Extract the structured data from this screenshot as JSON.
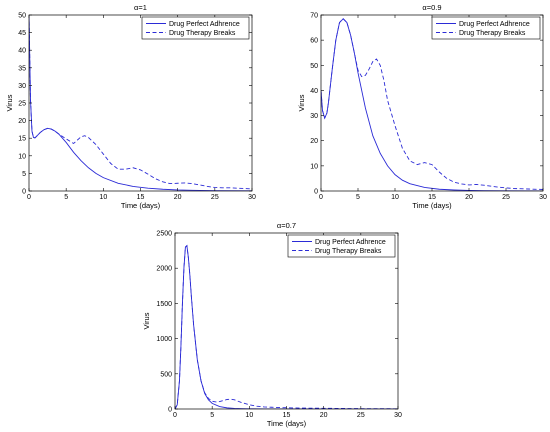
{
  "series_color": "#2b2bd6",
  "chart_data": [
    {
      "type": "line",
      "title": "α=1",
      "xlabel": "Time (days)",
      "ylabel": "Virus",
      "xlim": [
        0,
        30
      ],
      "ylim": [
        0,
        50
      ],
      "xticks": [
        0,
        5,
        10,
        15,
        20,
        25,
        30
      ],
      "yticks": [
        0,
        5,
        10,
        15,
        20,
        25,
        30,
        35,
        40,
        45,
        50
      ],
      "grid": false,
      "legend": "top-right",
      "series": [
        {
          "name": "Drug Perfect Adhrence",
          "style": "solid",
          "x": [
            0,
            0.1,
            0.2,
            0.4,
            0.6,
            0.8,
            1.0,
            1.5,
            2.0,
            2.5,
            3.0,
            3.5,
            4.0,
            5.0,
            6.0,
            7.0,
            8.0,
            9.0,
            10.0,
            12.0,
            14.0,
            16.0,
            18.0,
            20.0,
            22.0,
            25.0,
            30.0
          ],
          "y": [
            50,
            38,
            26,
            17,
            15.2,
            15.1,
            15.5,
            16.6,
            17.4,
            17.8,
            17.6,
            17.0,
            16.2,
            13.8,
            11.0,
            8.6,
            6.6,
            5.0,
            3.8,
            2.2,
            1.3,
            0.8,
            0.5,
            0.3,
            0.2,
            0.1,
            0.05
          ]
        },
        {
          "name": "Drug Therapy Breaks",
          "style": "dashed",
          "x": [
            0,
            0.1,
            0.2,
            0.4,
            0.6,
            0.8,
            1.0,
            1.5,
            2.0,
            2.5,
            3.0,
            3.5,
            4.0,
            5.0,
            6.0,
            7.0,
            7.5,
            8.0,
            9.0,
            10.0,
            11.0,
            12.0,
            13.0,
            14.0,
            15.0,
            16.0,
            17.0,
            18.0,
            19.0,
            20.0,
            21.0,
            22.0,
            23.0,
            24.0,
            25.0,
            26.0,
            27.0,
            28.0,
            30.0
          ],
          "y": [
            50,
            38,
            26,
            17,
            15.2,
            15.1,
            15.5,
            16.6,
            17.4,
            17.8,
            17.6,
            17.0,
            16.2,
            14.8,
            13.5,
            15.4,
            15.7,
            15.2,
            13.2,
            10.5,
            7.8,
            6.2,
            6.2,
            6.6,
            6.0,
            4.8,
            3.5,
            2.6,
            2.1,
            2.2,
            2.3,
            2.1,
            1.7,
            1.3,
            1.0,
            0.9,
            0.9,
            0.8,
            0.6
          ]
        }
      ]
    },
    {
      "type": "line",
      "title": "α=0.9",
      "xlabel": "Time (days)",
      "ylabel": "Virus",
      "xlim": [
        0,
        30
      ],
      "ylim": [
        0,
        70
      ],
      "xticks": [
        0,
        5,
        10,
        15,
        20,
        25,
        30
      ],
      "yticks": [
        0,
        10,
        20,
        30,
        40,
        50,
        60,
        70
      ],
      "grid": false,
      "legend": "top-right",
      "series": [
        {
          "name": "Drug Perfect Adhrence",
          "style": "solid",
          "x": [
            0,
            0.2,
            0.5,
            0.8,
            1.0,
            1.5,
            2.0,
            2.5,
            3.0,
            3.5,
            4.0,
            4.5,
            5.0,
            6.0,
            7.0,
            8.0,
            9.0,
            10.0,
            11.0,
            12.0,
            14.0,
            16.0,
            18.0,
            20.0,
            22.0,
            25.0,
            30.0
          ],
          "y": [
            40,
            32,
            29,
            31,
            35,
            48,
            60,
            67,
            68.5,
            67,
            62,
            55,
            47,
            33,
            22,
            15,
            10,
            6.5,
            4.3,
            2.9,
            1.4,
            0.7,
            0.4,
            0.2,
            0.1,
            0.05,
            0.02
          ]
        },
        {
          "name": "Drug Therapy Breaks",
          "style": "dashed",
          "x": [
            0,
            0.2,
            0.5,
            0.8,
            1.0,
            1.5,
            2.0,
            2.5,
            3.0,
            3.5,
            4.0,
            4.5,
            5.0,
            5.5,
            6.0,
            6.5,
            7.0,
            7.5,
            8.0,
            8.5,
            9.0,
            10.0,
            11.0,
            12.0,
            13.0,
            14.0,
            15.0,
            16.0,
            17.0,
            18.0,
            19.0,
            20.0,
            21.0,
            22.0,
            24.0,
            26.0,
            28.0,
            30.0
          ],
          "y": [
            40,
            32,
            29,
            31,
            35,
            48,
            60,
            67,
            68.5,
            67,
            62,
            55,
            48,
            45.5,
            46,
            48.5,
            51.5,
            52.5,
            50,
            44,
            36,
            26,
            17,
            12,
            10.5,
            11.3,
            10.5,
            7.5,
            5.0,
            3.5,
            2.8,
            2.4,
            2.6,
            2.3,
            1.5,
            1.0,
            0.8,
            0.6
          ]
        }
      ]
    },
    {
      "type": "line",
      "title": "α=0.7",
      "xlabel": "Time (days)",
      "ylabel": "Virus",
      "xlim": [
        0,
        30
      ],
      "ylim": [
        0,
        2500
      ],
      "xticks": [
        0,
        5,
        10,
        15,
        20,
        25,
        30
      ],
      "yticks": [
        0,
        500,
        1000,
        1500,
        2000,
        2500
      ],
      "grid": false,
      "legend": "top-right",
      "series": [
        {
          "name": "Drug Perfect Adhrence",
          "style": "solid",
          "x": [
            0,
            0.3,
            0.6,
            0.8,
            1.0,
            1.2,
            1.4,
            1.6,
            1.8,
            2.0,
            2.2,
            2.5,
            3.0,
            3.5,
            4.0,
            4.5,
            5.0,
            6.0,
            7.0,
            8.0,
            9.0,
            10.0,
            12.0,
            15.0,
            20.0,
            30.0
          ],
          "y": [
            0,
            60,
            400,
            900,
            1500,
            2000,
            2300,
            2320,
            2150,
            1900,
            1600,
            1200,
            700,
            400,
            220,
            130,
            80,
            35,
            16,
            8,
            4,
            2,
            1,
            0,
            0,
            0
          ]
        },
        {
          "name": "Drug Therapy Breaks",
          "style": "dashed",
          "x": [
            0,
            0.3,
            0.6,
            0.8,
            1.0,
            1.2,
            1.4,
            1.6,
            1.8,
            2.0,
            2.2,
            2.5,
            3.0,
            3.5,
            4.0,
            4.5,
            5.0,
            5.5,
            6.0,
            6.5,
            7.0,
            7.5,
            8.0,
            8.5,
            9.0,
            10.0,
            11.0,
            12.0,
            13.0,
            14.0,
            15.0,
            16.0,
            18.0,
            20.0,
            22.0,
            25.0,
            30.0
          ],
          "y": [
            0,
            60,
            400,
            900,
            1500,
            2000,
            2300,
            2320,
            2150,
            1900,
            1600,
            1200,
            700,
            400,
            230,
            150,
            110,
            100,
            105,
            120,
            135,
            140,
            130,
            110,
            90,
            60,
            40,
            30,
            25,
            20,
            18,
            15,
            12,
            10,
            8,
            5,
            3
          ]
        }
      ]
    }
  ]
}
